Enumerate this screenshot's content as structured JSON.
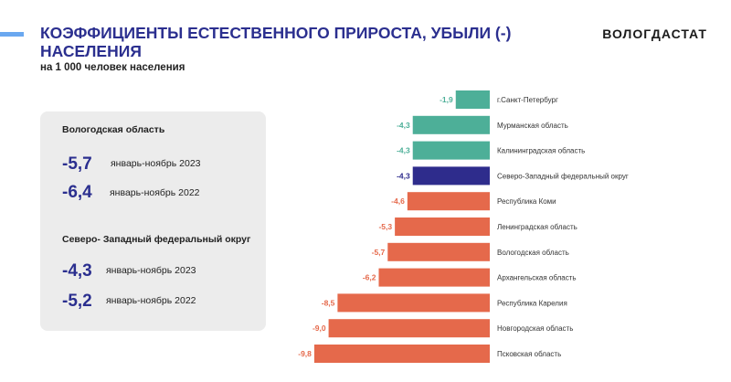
{
  "header": {
    "title": "КОЭФФИЦИЕНТЫ ЕСТЕСТВЕННОГО ПРИРОСТА, УБЫЛИ (-) НАСЕЛЕНИЯ",
    "subtitle": "на 1 000 человек населения",
    "brand": "ВОЛОГДАСТАТ"
  },
  "summary": {
    "region": {
      "label": "Вологодская область",
      "rows": [
        {
          "value": "-5,7",
          "period": "январь-ноябрь 2023"
        },
        {
          "value": "-6,4",
          "period": "январь-ноябрь 2022"
        }
      ]
    },
    "district": {
      "label": "Северо- Западный федеральный округ",
      "rows": [
        {
          "value": "-4,3",
          "period": "январь-ноябрь 2023"
        },
        {
          "value": "-5,2",
          "period": "январь-ноябрь 2022"
        }
      ]
    }
  },
  "chart_data": {
    "type": "bar",
    "orientation": "horizontal",
    "title": "",
    "xlabel": "",
    "ylabel": "",
    "xlim": [
      -9.8,
      0
    ],
    "categories": [
      "г.Санкт-Петербург",
      "Мурманская область",
      "Калининградская область",
      "Северо-Западный федеральный округ",
      "Республика Коми",
      "Ленинградская область",
      "Вологодская область",
      "Архангельская область",
      "Республика Карелия",
      "Новгородская область",
      "Псковская область"
    ],
    "values": [
      -1.9,
      -4.3,
      -4.3,
      -4.3,
      -4.6,
      -5.3,
      -5.7,
      -6.2,
      -8.5,
      -9.0,
      -9.8
    ],
    "value_labels": [
      "-1,9",
      "-4,3",
      "-4,3",
      "-4,3",
      "-4,6",
      "-5,3",
      "-5,7",
      "-6,2",
      "-8,5",
      "-9,0",
      "-9,8"
    ],
    "bar_colors": [
      "#4daf98",
      "#4daf98",
      "#4daf98",
      "#2e2c8c",
      "#e5694b",
      "#e5694b",
      "#e5694b",
      "#e5694b",
      "#e5694b",
      "#e5694b",
      "#e5694b"
    ]
  }
}
